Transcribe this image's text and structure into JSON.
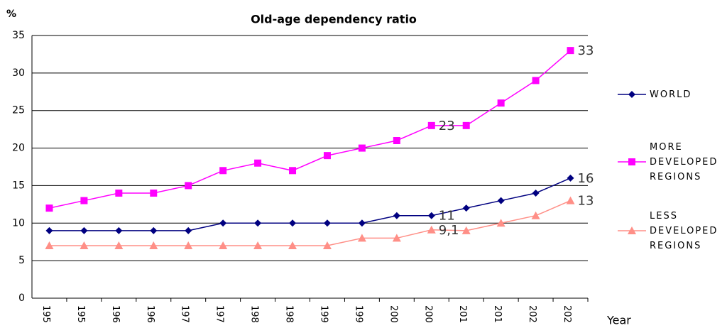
{
  "chart_data": {
    "type": "line",
    "title": "Old-age dependency ratio",
    "y_label": "%",
    "x_label": "Year",
    "categories": [
      "195",
      "195",
      "196",
      "196",
      "197",
      "197",
      "198",
      "198",
      "199",
      "199",
      "200",
      "200",
      "201",
      "201",
      "202",
      "202"
    ],
    "series": [
      {
        "name": "WORLD",
        "color": "#000080",
        "marker": "diamond",
        "values": [
          9,
          9,
          9,
          9,
          9,
          10,
          10,
          10,
          10,
          10,
          11,
          11,
          12,
          13,
          14,
          16
        ],
        "value_labels": [
          null,
          null,
          null,
          null,
          null,
          null,
          null,
          null,
          null,
          null,
          null,
          "11",
          null,
          null,
          null,
          "16"
        ]
      },
      {
        "name": "MORE DEVELOPED REGIONS",
        "color": "#ff00ff",
        "marker": "square",
        "values": [
          12,
          13,
          14,
          14,
          15,
          17,
          18,
          17,
          19,
          20,
          21,
          23,
          23,
          26,
          29,
          33
        ],
        "value_labels": [
          null,
          null,
          null,
          null,
          null,
          null,
          null,
          null,
          null,
          null,
          null,
          "23",
          null,
          null,
          null,
          "33"
        ]
      },
      {
        "name": "LESS DEVELOPED REGIONS",
        "color": "#ff8f87",
        "marker": "triangle",
        "values": [
          7,
          7,
          7,
          7,
          7,
          7,
          7,
          7,
          7,
          8,
          8,
          9.1,
          9,
          10,
          11,
          13
        ],
        "value_labels": [
          null,
          null,
          null,
          null,
          null,
          null,
          null,
          null,
          null,
          null,
          null,
          "9,1",
          null,
          null,
          null,
          "13"
        ]
      }
    ],
    "ylim": [
      0,
      35
    ],
    "yticks": [
      0,
      5,
      10,
      15,
      20,
      25,
      30,
      35
    ],
    "grid": true,
    "legend": "right"
  }
}
